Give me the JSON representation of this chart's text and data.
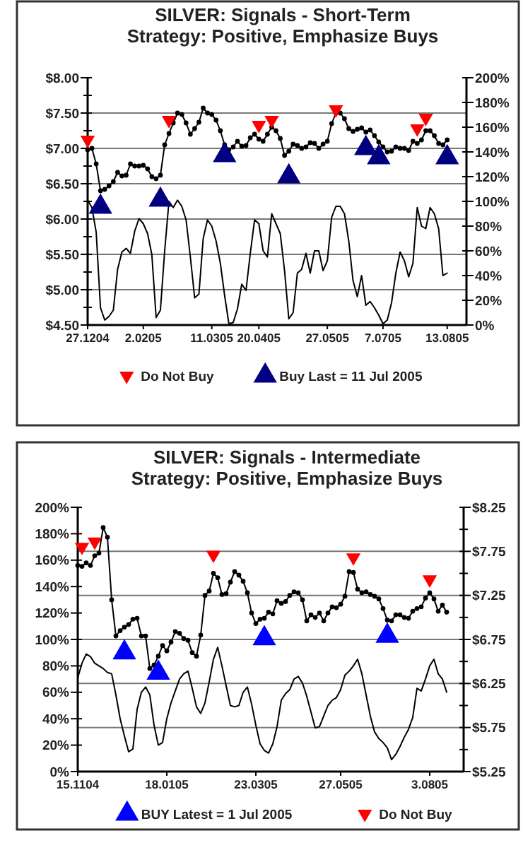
{
  "chart_data": [
    {
      "type": "line",
      "title": "SILVER: Signals - Short-Term",
      "subtitle": "Strategy: Positive, Emphasize Buys",
      "categories": [
        "27.1204",
        null,
        null,
        null,
        null,
        null,
        null,
        null,
        null,
        null,
        null,
        null,
        null,
        "2.0205",
        null,
        null,
        null,
        null,
        null,
        null,
        null,
        null,
        null,
        null,
        null,
        null,
        null,
        null,
        null,
        "11.0305",
        null,
        null,
        null,
        null,
        null,
        null,
        null,
        null,
        null,
        null,
        "20.0405",
        null,
        null,
        null,
        null,
        null,
        null,
        null,
        null,
        null,
        null,
        null,
        null,
        null,
        null,
        null,
        "27.0505",
        null,
        null,
        null,
        null,
        null,
        null,
        null,
        null,
        null,
        null,
        null,
        null,
        "7.0705",
        null,
        null,
        null,
        null,
        null,
        null,
        null,
        null,
        null,
        null,
        null,
        null,
        null,
        null,
        "13.0805"
      ],
      "ylim": [
        4.5,
        8
      ],
      "yticks": [
        {
          "value": 8,
          "label": "$8.00"
        },
        {
          "value": 7.75,
          "label": null
        },
        {
          "value": 7.5,
          "label": "$7.50"
        },
        {
          "value": 7.25,
          "label": null
        },
        {
          "value": 7,
          "label": "$7.00"
        },
        {
          "value": 6.75,
          "label": null
        },
        {
          "value": 6.5,
          "label": "$6.50"
        },
        {
          "value": 6.25,
          "label": null
        },
        {
          "value": 6,
          "label": "$6.00"
        },
        {
          "value": 5.75,
          "label": null
        },
        {
          "value": 5.5,
          "label": "$5.50"
        },
        {
          "value": 5.25,
          "label": null
        },
        {
          "value": 5,
          "label": "$5.00"
        },
        {
          "value": 4.75,
          "label": null
        },
        {
          "value": 4.5,
          "label": "$4.50"
        }
      ],
      "y2lim": [
        0,
        200
      ],
      "y2ticks": [
        {
          "value": 200,
          "label": "200%"
        },
        {
          "value": 180,
          "label": "180%"
        },
        {
          "value": 160,
          "label": "160%"
        },
        {
          "value": 140,
          "label": "140%"
        },
        {
          "value": 120,
          "label": "120%"
        },
        {
          "value": 100,
          "label": "100%"
        },
        {
          "value": 80,
          "label": "80%"
        },
        {
          "value": 60,
          "label": "60%"
        },
        {
          "value": 40,
          "label": "40%"
        },
        {
          "value": 20,
          "label": "20%"
        },
        {
          "value": 0,
          "label": "0%"
        }
      ],
      "grid": "y",
      "legend": "bottom",
      "series": [
        {
          "color": "#000000",
          "marker": "circle",
          "values": [
            6.98,
            7.0,
            6.78,
            6.4,
            6.42,
            6.47,
            6.53,
            6.66,
            6.61,
            6.62,
            6.78,
            6.75,
            6.75,
            6.76,
            6.71,
            6.6,
            6.57,
            6.62,
            7.05,
            7.21,
            7.36,
            7.5,
            7.48,
            7.36,
            7.2,
            7.28,
            7.37,
            7.57,
            7.5,
            7.48,
            7.4,
            7.25,
            7.05,
            6.98,
            7.02,
            7.1,
            7.03,
            7.04,
            7.15,
            7.2,
            7.13,
            7.1,
            7.2,
            7.3,
            7.25,
            7.14,
            6.9,
            6.96,
            7.06,
            7.04,
            7.0,
            7.02,
            7.08,
            7.07,
            7.0,
            7.06,
            7.1,
            7.35,
            7.5,
            7.5,
            7.42,
            7.28,
            7.24,
            7.27,
            7.29,
            7.23,
            7.26,
            7.18,
            7.09,
            7.02,
            6.95,
            6.96,
            7.02,
            7.0,
            7.0,
            6.97,
            7.1,
            7.07,
            7.12,
            7.25,
            7.25,
            7.18,
            7.07,
            7.05,
            7.12
          ]
        },
        {
          "color": "#000000",
          "axis": "y2",
          "values": [
            101,
            95,
            75,
            14,
            4,
            7,
            12,
            45,
            59,
            62,
            58,
            76,
            86,
            82,
            74,
            57,
            6,
            12,
            60,
            100,
            95,
            101,
            96,
            85,
            55,
            22,
            25,
            70,
            85,
            80,
            68,
            50,
            24,
            1,
            2,
            13,
            33,
            28,
            58,
            85,
            82,
            60,
            55,
            90,
            82,
            74,
            44,
            5,
            10,
            42,
            45,
            58,
            42,
            60,
            60,
            44,
            52,
            87,
            96,
            96,
            90,
            68,
            36,
            23,
            40,
            16,
            19,
            14,
            8,
            1,
            4,
            18,
            42,
            59,
            52,
            39,
            50,
            95,
            80,
            78,
            95,
            90,
            78,
            40,
            42
          ]
        },
        {
          "type": "scatter",
          "name": "Do Not Buy",
          "color": "#ff0000",
          "marker": "triangle-down",
          "values": [
            7.12,
            null,
            null,
            null,
            null,
            null,
            null,
            null,
            null,
            null,
            null,
            null,
            null,
            null,
            null,
            null,
            null,
            null,
            null,
            7.4,
            null,
            null,
            null,
            null,
            null,
            null,
            null,
            null,
            null,
            null,
            null,
            null,
            null,
            null,
            null,
            null,
            null,
            null,
            null,
            null,
            7.33,
            null,
            null,
            7.4,
            null,
            null,
            null,
            null,
            null,
            null,
            null,
            null,
            null,
            null,
            null,
            null,
            null,
            null,
            7.55,
            null,
            null,
            null,
            null,
            null,
            null,
            null,
            null,
            null,
            null,
            null,
            null,
            null,
            null,
            null,
            null,
            null,
            null,
            7.28,
            null,
            7.43,
            null,
            null,
            null,
            null,
            null
          ]
        },
        {
          "type": "scatter",
          "name": "Buy Last = 11 Jul 2005",
          "color": "#000080",
          "marker": "triangle",
          "values": [
            null,
            null,
            null,
            6.17,
            null,
            null,
            null,
            null,
            null,
            null,
            null,
            null,
            null,
            null,
            null,
            null,
            null,
            6.27,
            null,
            null,
            null,
            null,
            null,
            null,
            null,
            null,
            null,
            null,
            null,
            null,
            null,
            null,
            6.9,
            null,
            null,
            null,
            null,
            null,
            null,
            null,
            null,
            null,
            null,
            null,
            null,
            null,
            null,
            6.6,
            null,
            null,
            null,
            null,
            null,
            null,
            null,
            null,
            null,
            null,
            null,
            null,
            null,
            null,
            null,
            null,
            null,
            7.0,
            null,
            null,
            6.87,
            null,
            null,
            null,
            null,
            null,
            null,
            null,
            null,
            null,
            null,
            null,
            null,
            null,
            null,
            null,
            6.87
          ]
        }
      ]
    },
    {
      "type": "line",
      "title": "SILVER: Signals - Intermediate",
      "subtitle": "Strategy: Positive, Emphasize Buys",
      "categories": [
        "15.1104",
        null,
        null,
        null,
        null,
        null,
        null,
        null,
        null,
        null,
        null,
        null,
        null,
        null,
        null,
        null,
        null,
        null,
        null,
        null,
        null,
        "18.0105",
        null,
        null,
        null,
        null,
        null,
        null,
        null,
        null,
        null,
        null,
        null,
        null,
        null,
        null,
        null,
        null,
        null,
        null,
        null,
        null,
        "23.0305",
        null,
        null,
        null,
        null,
        null,
        null,
        null,
        null,
        null,
        null,
        null,
        null,
        null,
        null,
        null,
        null,
        null,
        null,
        null,
        "27.0505",
        null,
        null,
        null,
        null,
        null,
        null,
        null,
        null,
        null,
        null,
        null,
        null,
        null,
        null,
        null,
        null,
        null,
        null,
        null,
        null,
        "3.0805",
        null,
        null,
        null,
        null
      ],
      "ylim": [
        0,
        200
      ],
      "yticks": [
        {
          "value": 200,
          "label": "200%"
        },
        {
          "value": 180,
          "label": "180%"
        },
        {
          "value": 160,
          "label": "160%"
        },
        {
          "value": 140,
          "label": "140%"
        },
        {
          "value": 120,
          "label": "120%"
        },
        {
          "value": 100,
          "label": "100%"
        },
        {
          "value": 80,
          "label": "80%"
        },
        {
          "value": 60,
          "label": "60%"
        },
        {
          "value": 40,
          "label": "40%"
        },
        {
          "value": 20,
          "label": "20%"
        },
        {
          "value": 0,
          "label": "0%"
        }
      ],
      "y2lim": [
        5.25,
        8.25
      ],
      "y2ticks": [
        {
          "value": 8.25,
          "label": "$8.25"
        },
        {
          "value": 8,
          "label": null
        },
        {
          "value": 7.75,
          "label": "$7.75"
        },
        {
          "value": 7.5,
          "label": null
        },
        {
          "value": 7.25,
          "label": "$7.25"
        },
        {
          "value": 7,
          "label": null
        },
        {
          "value": 6.75,
          "label": "$6.75"
        },
        {
          "value": 6.5,
          "label": null
        },
        {
          "value": 6.25,
          "label": "$6.25"
        },
        {
          "value": 6,
          "label": null
        },
        {
          "value": 5.75,
          "label": "$5.75"
        },
        {
          "value": 5.5,
          "label": null
        },
        {
          "value": 5.25,
          "label": "$5.25"
        }
      ],
      "grid": "y2",
      "legend": "bottom",
      "series": [
        {
          "color": "#000000",
          "marker": "circle",
          "axis": "y2",
          "values": [
            7.59,
            7.58,
            7.62,
            7.59,
            7.7,
            7.73,
            8.02,
            7.91,
            7.2,
            6.79,
            6.85,
            6.89,
            6.92,
            6.98,
            6.99,
            6.79,
            6.79,
            6.42,
            6.46,
            6.56,
            6.68,
            6.62,
            6.72,
            6.84,
            6.82,
            6.76,
            6.74,
            6.6,
            6.56,
            6.8,
            7.25,
            7.3,
            7.5,
            7.45,
            7.26,
            7.27,
            7.4,
            7.52,
            7.48,
            7.41,
            7.28,
            7.05,
            6.93,
            6.98,
            6.99,
            7.06,
            7.04,
            7.19,
            7.16,
            7.18,
            7.25,
            7.29,
            7.28,
            7.2,
            6.96,
            7.03,
            7.0,
            7.05,
            6.96,
            7.05,
            7.12,
            7.11,
            7.15,
            7.24,
            7.52,
            7.51,
            7.32,
            7.28,
            7.29,
            7.26,
            7.24,
            7.21,
            7.1,
            6.97,
            6.96,
            7.03,
            7.03,
            7.0,
            6.99,
            7.07,
            7.1,
            7.12,
            7.22,
            7.28,
            7.21,
            7.07,
            7.14,
            7.06
          ]
        },
        {
          "color": "#000000",
          "values": [
            71,
            82,
            89,
            87,
            82,
            80,
            78,
            75,
            74,
            58,
            40,
            27,
            15,
            17,
            47,
            60,
            64,
            58,
            35,
            20,
            22,
            40,
            52,
            61,
            70,
            74,
            76,
            63,
            49,
            44,
            52,
            68,
            85,
            94,
            80,
            65,
            50,
            49,
            50,
            60,
            64,
            51,
            35,
            21,
            16,
            14,
            21,
            34,
            54,
            59,
            62,
            70,
            72,
            67,
            57,
            45,
            33,
            34,
            42,
            50,
            54,
            56,
            62,
            73,
            76,
            80,
            85,
            74,
            58,
            42,
            30,
            25,
            22,
            18,
            9,
            13,
            19,
            26,
            32,
            41,
            63,
            61,
            70,
            80,
            85,
            74,
            70,
            60
          ]
        },
        {
          "type": "scatter",
          "name": "BUY Latest = 1 Jul 2005",
          "color": "#0000ff",
          "marker": "triangle",
          "axis": "y2",
          "values": [
            null,
            null,
            null,
            null,
            null,
            null,
            null,
            null,
            null,
            null,
            null,
            6.6,
            null,
            null,
            null,
            null,
            null,
            null,
            null,
            6.37,
            null,
            null,
            null,
            null,
            null,
            null,
            null,
            null,
            null,
            null,
            null,
            null,
            null,
            null,
            null,
            null,
            null,
            null,
            null,
            null,
            null,
            null,
            null,
            null,
            6.76,
            null,
            null,
            null,
            null,
            null,
            null,
            null,
            null,
            null,
            null,
            null,
            null,
            null,
            null,
            null,
            null,
            null,
            null,
            null,
            null,
            null,
            null,
            null,
            null,
            null,
            null,
            null,
            null,
            6.79,
            null,
            null,
            null,
            null,
            null,
            null,
            null,
            null,
            null,
            null,
            null,
            null,
            null,
            null
          ]
        },
        {
          "type": "scatter",
          "name": "Do Not Buy",
          "color": "#ff0000",
          "marker": "triangle-down",
          "axis": "y2",
          "values": [
            null,
            7.8,
            null,
            null,
            7.86,
            null,
            null,
            null,
            null,
            null,
            null,
            null,
            null,
            null,
            null,
            null,
            null,
            null,
            null,
            null,
            null,
            null,
            null,
            null,
            null,
            null,
            null,
            null,
            null,
            null,
            null,
            null,
            7.71,
            null,
            null,
            null,
            null,
            null,
            null,
            null,
            null,
            null,
            null,
            null,
            null,
            null,
            null,
            null,
            null,
            null,
            null,
            null,
            null,
            null,
            null,
            null,
            null,
            null,
            null,
            null,
            null,
            null,
            null,
            null,
            null,
            7.68,
            null,
            null,
            null,
            null,
            null,
            null,
            null,
            null,
            null,
            null,
            null,
            null,
            null,
            null,
            null,
            null,
            null,
            7.43,
            null,
            null,
            null,
            null
          ]
        }
      ]
    }
  ]
}
